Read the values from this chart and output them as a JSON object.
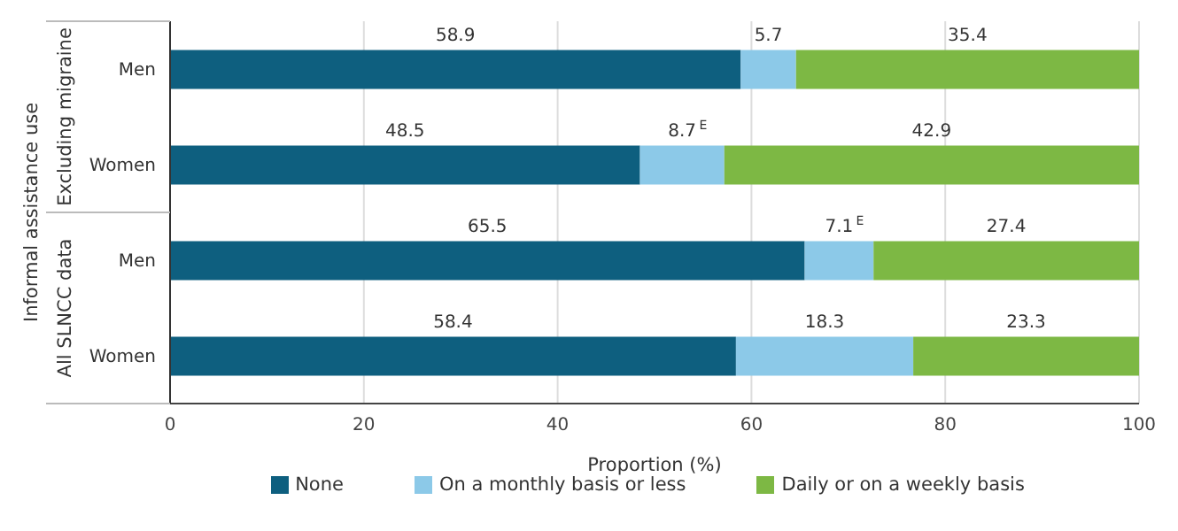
{
  "chart_data": {
    "type": "bar",
    "orientation": "horizontal",
    "stacked": true,
    "ylabel": "Informal assistance use",
    "xlabel": "Proportion (%)",
    "annotations": [
      "Excluding migraine",
      "All SLNCC data"
    ],
    "categories": [
      "Men",
      "Women",
      "Men",
      "Women"
    ],
    "series": [
      {
        "name": "None",
        "color": "#0e5f7f",
        "values": [
          58.9,
          48.5,
          65.5,
          58.4
        ],
        "value_labels": [
          "58.9",
          "48.5",
          "65.5",
          "58.4"
        ]
      },
      {
        "name": "On a monthly basis or less",
        "color": "#8cc9e8",
        "values": [
          5.7,
          8.7,
          7.1,
          18.3
        ],
        "value_labels": [
          "5.7",
          "8.7$^{E}$",
          "7.1$^{E}$",
          "18.3"
        ]
      },
      {
        "name": "Daily or on a weekly basis",
        "color": "#7db844",
        "values": [
          35.4,
          42.9,
          27.4,
          23.3
        ],
        "value_labels": [
          "35.4",
          "42.9",
          "27.4",
          "23.3"
        ]
      }
    ],
    "xlim": [
      0,
      100
    ],
    "xticks": [
      0,
      20,
      40,
      60,
      80,
      100
    ],
    "grid": "x",
    "legend": "bottom"
  }
}
